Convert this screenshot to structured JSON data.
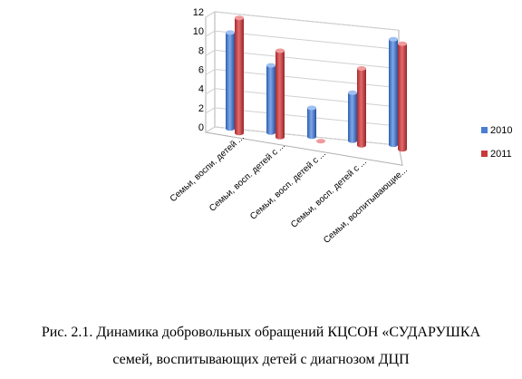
{
  "chart_data": {
    "type": "bar",
    "style": "3d-cylinder",
    "categories": [
      "Семьи, воспи. детей ...",
      "Семьи, восп. детей с ...",
      "Семьи, восп. детей с ...",
      "Семьи, восп. детей с ...",
      "Семьи, воспитывающие..."
    ],
    "series": [
      {
        "name": "2010",
        "values": [
          10,
          7,
          3,
          5,
          11
        ]
      },
      {
        "name": "2011",
        "values": [
          12,
          9,
          0,
          8,
          11
        ]
      }
    ],
    "ylim": [
      0,
      12
    ],
    "yticks": [
      0,
      2,
      4,
      6,
      8,
      10,
      12
    ],
    "legend": "right",
    "colors": {
      "2010": "#4a7fd0",
      "2011": "#c9393c"
    }
  },
  "caption": {
    "line1": "Рис. 2.1. Динамика добровольных обращений КЦСОН «СУДАРУШКА",
    "line2": "семей, воспитывающих детей с диагнозом ДЦП"
  }
}
